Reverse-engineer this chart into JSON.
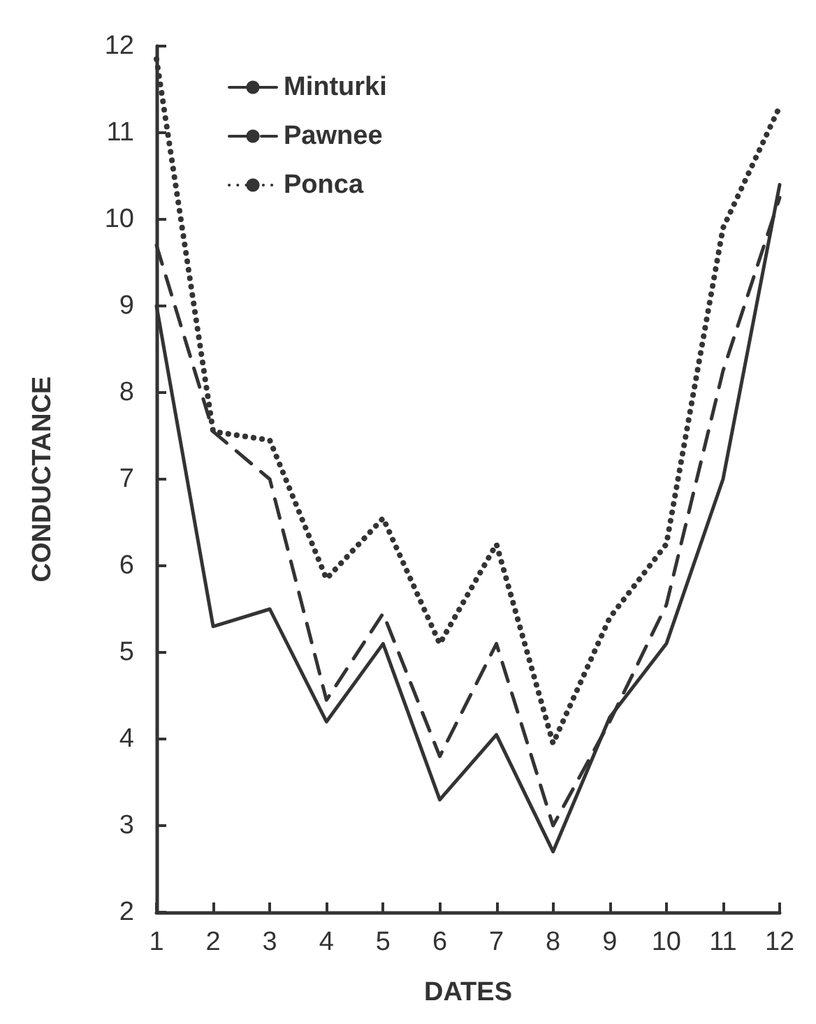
{
  "chart_data": {
    "type": "line",
    "xlabel": "DATES",
    "ylabel": "CONDUCTANCE",
    "x": [
      1,
      2,
      3,
      4,
      5,
      6,
      7,
      8,
      9,
      10,
      11,
      12
    ],
    "series": [
      {
        "name": "Minturki",
        "color": "#333333",
        "line_style": "solid",
        "values": [
          9.0,
          5.3,
          5.5,
          4.2,
          5.1,
          3.3,
          4.05,
          2.7,
          4.25,
          5.1,
          7.0,
          10.4
        ]
      },
      {
        "name": "Pawnee",
        "color": "#333333",
        "line_style": "dashed",
        "values": [
          9.7,
          7.55,
          7.0,
          4.45,
          5.45,
          3.8,
          5.1,
          3.0,
          4.2,
          5.55,
          8.25,
          10.25
        ]
      },
      {
        "name": "Ponca",
        "color": "#333333",
        "line_style": "dotted",
        "values": [
          11.85,
          7.55,
          7.45,
          5.85,
          6.55,
          5.1,
          6.25,
          3.95,
          5.4,
          6.25,
          9.9,
          11.3
        ]
      }
    ],
    "xlim": [
      1,
      12
    ],
    "ylim": [
      2,
      12
    ],
    "xticks": [
      1,
      2,
      3,
      4,
      5,
      6,
      7,
      8,
      9,
      10,
      11,
      12
    ],
    "yticks": [
      2,
      3,
      4,
      5,
      6,
      7,
      8,
      9,
      10,
      11,
      12
    ],
    "grid": false,
    "legend": "top left",
    "marker": "none"
  }
}
